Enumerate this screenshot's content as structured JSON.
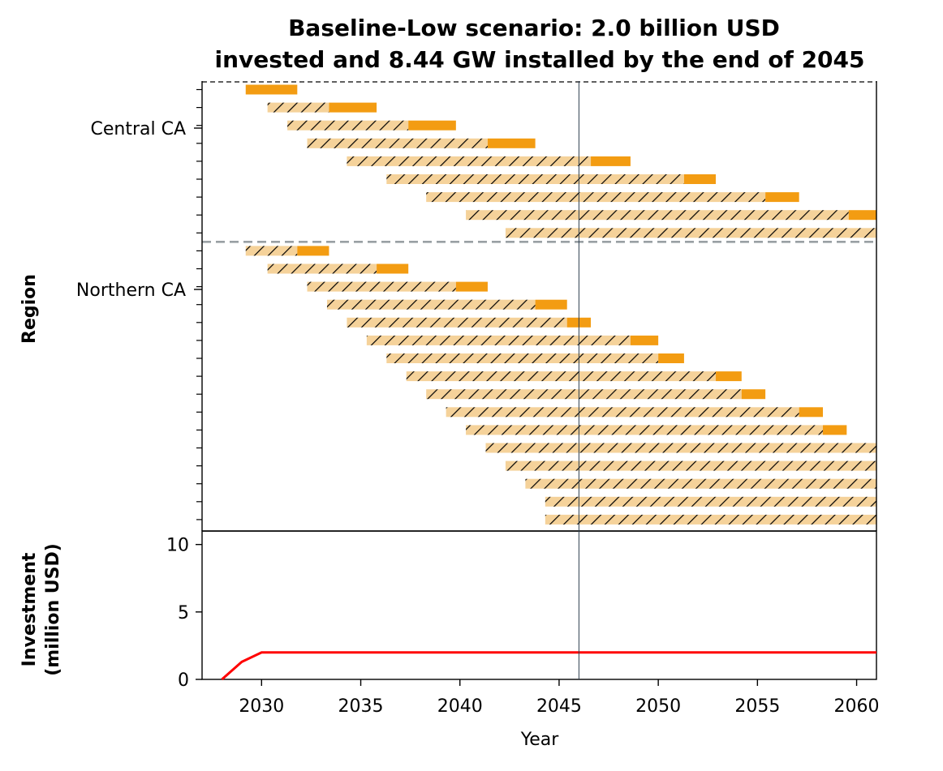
{
  "chart_data": [
    {
      "type": "gantt",
      "title_line1": "Baseline-Low scenario: 2.0 billion USD",
      "title_line2": "invested and 8.44 GW installed by the end of 2045",
      "ylabel": "Region",
      "xlim": [
        2027,
        2061
      ],
      "reference_year": 2046,
      "colors": {
        "construction": "#f5d29a",
        "operation": "#f39c12",
        "hatch": "#000000",
        "divider": "#99a0a4",
        "reference_line": "#2c3e50"
      },
      "groups": [
        {
          "label": "Central CA",
          "bars": [
            {
              "build_start": 2029.2,
              "op_start": 2029.2,
              "end": 2031.8
            },
            {
              "build_start": 2030.3,
              "op_start": 2033.4,
              "end": 2035.8
            },
            {
              "build_start": 2031.3,
              "op_start": 2037.4,
              "end": 2039.8
            },
            {
              "build_start": 2032.3,
              "op_start": 2041.4,
              "end": 2043.8
            },
            {
              "build_start": 2034.3,
              "op_start": 2046.6,
              "end": 2048.6
            },
            {
              "build_start": 2036.3,
              "op_start": 2051.3,
              "end": 2052.9
            },
            {
              "build_start": 2038.3,
              "op_start": 2055.4,
              "end": 2057.1
            },
            {
              "build_start": 2040.3,
              "op_start": 2059.6,
              "end": 2061
            },
            {
              "build_start": 2042.3,
              "op_start": null,
              "end": 2061
            }
          ]
        },
        {
          "label": "Northern CA",
          "bars": [
            {
              "build_start": 2029.2,
              "op_start": 2031.8,
              "end": 2033.4
            },
            {
              "build_start": 2030.3,
              "op_start": 2035.8,
              "end": 2037.4
            },
            {
              "build_start": 2032.3,
              "op_start": 2039.8,
              "end": 2041.4
            },
            {
              "build_start": 2033.3,
              "op_start": 2043.8,
              "end": 2045.4
            },
            {
              "build_start": 2034.3,
              "op_start": 2045.4,
              "end": 2046.6
            },
            {
              "build_start": 2035.3,
              "op_start": 2048.6,
              "end": 2050
            },
            {
              "build_start": 2036.3,
              "op_start": 2050,
              "end": 2051.3
            },
            {
              "build_start": 2037.3,
              "op_start": 2052.9,
              "end": 2054.2
            },
            {
              "build_start": 2038.3,
              "op_start": 2054.2,
              "end": 2055.4
            },
            {
              "build_start": 2039.3,
              "op_start": 2057.1,
              "end": 2058.3
            },
            {
              "build_start": 2040.3,
              "op_start": 2058.3,
              "end": 2059.5
            },
            {
              "build_start": 2041.3,
              "op_start": null,
              "end": 2061
            },
            {
              "build_start": 2042.3,
              "op_start": null,
              "end": 2061
            },
            {
              "build_start": 2043.3,
              "op_start": null,
              "end": 2061
            },
            {
              "build_start": 2044.3,
              "op_start": null,
              "end": 2061
            },
            {
              "build_start": 2044.3,
              "op_start": null,
              "end": 2061
            }
          ]
        }
      ]
    },
    {
      "type": "line",
      "ylabel_line1": "Investment",
      "ylabel_line2": "(million USD)",
      "xlabel": "Year",
      "xlim": [
        2027,
        2061
      ],
      "ylim": [
        0,
        11
      ],
      "xticks": [
        2030,
        2035,
        2040,
        2045,
        2050,
        2055,
        2060
      ],
      "yticks": [
        0,
        5,
        10
      ],
      "series": [
        {
          "color": "#ff0000",
          "x": [
            2028,
            2029,
            2030,
            2031,
            2035,
            2040,
            2045,
            2050,
            2055,
            2060,
            2061
          ],
          "y": [
            0,
            1.3,
            2.0,
            2.0,
            2.0,
            2.0,
            2.0,
            2.0,
            2.0,
            2.0,
            2.0
          ]
        }
      ]
    }
  ]
}
